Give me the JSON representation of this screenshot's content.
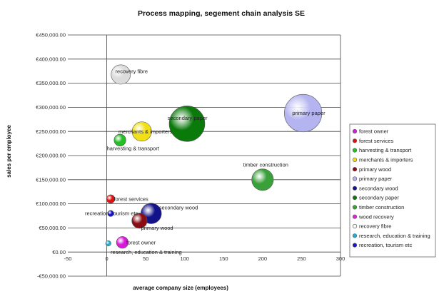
{
  "chart_data": {
    "type": "bubble",
    "title": "Process mapping, segement chain analysis SE",
    "xlabel": "average company size (employees)",
    "ylabel": "sales per employee",
    "xlim": [
      -50,
      300
    ],
    "ylim": [
      -50000,
      450000
    ],
    "x_ticks": [
      -50,
      0,
      50,
      100,
      150,
      200,
      250,
      300
    ],
    "y_ticks": [
      {
        "value": -50000,
        "label": "-€50,000.00"
      },
      {
        "value": 0,
        "label": "€0.00"
      },
      {
        "value": 50000,
        "label": "€50,000.00"
      },
      {
        "value": 100000,
        "label": "€100,000.00"
      },
      {
        "value": 150000,
        "label": "€150,000.00"
      },
      {
        "value": 200000,
        "label": "€200,000.00"
      },
      {
        "value": 250000,
        "label": "€250,000.00"
      },
      {
        "value": 300000,
        "label": "€300,000.00"
      },
      {
        "value": 350000,
        "label": "€350,000.00"
      },
      {
        "value": 400000,
        "label": "€400,000.00"
      },
      {
        "value": 450000,
        "label": "€450,000.00"
      }
    ],
    "grid": "horizontal",
    "legend_position": "right",
    "series": [
      {
        "name": "forest owner",
        "x": 20,
        "y": 20000,
        "size": 3,
        "color": "#d81bd8"
      },
      {
        "name": "forest services",
        "x": 5,
        "y": 110000,
        "size": 1.5,
        "color": "#e01010"
      },
      {
        "name": "harvesting & transport",
        "x": 17,
        "y": 232000,
        "size": 3,
        "color": "#22c022"
      },
      {
        "name": "merchants & importers",
        "x": 45,
        "y": 250000,
        "size": 8,
        "color": "#f0e014"
      },
      {
        "name": "primary wood",
        "x": 42,
        "y": 65000,
        "size": 5,
        "color": "#8a0c14"
      },
      {
        "name": "primary paper",
        "x": 252,
        "y": 288000,
        "size": 30,
        "color": "#b4b4f0"
      },
      {
        "name": "secondary wood",
        "x": 57,
        "y": 80000,
        "size": 9,
        "color": "#12128a"
      },
      {
        "name": "secondary paper",
        "x": 103,
        "y": 266000,
        "size": 27,
        "color": "#0a7a0a"
      },
      {
        "name": "timber construction",
        "x": 200,
        "y": 150000,
        "size": 10,
        "color": "#3aa03a"
      },
      {
        "name": "wood recovery",
        "x": 0,
        "y": 0,
        "size": 0,
        "color": "#e020e0"
      },
      {
        "name": "research, education & training",
        "x": 2,
        "y": 18000,
        "size": 0.6,
        "color": "#20b0d0"
      },
      {
        "name": "recovery fibre",
        "x": 18,
        "y": 368000,
        "size": 8,
        "color": "#dcdcdc"
      },
      {
        "name": "recreation, tourism etc",
        "x": 5,
        "y": 80000,
        "size": 0.8,
        "color": "#1818c8"
      }
    ],
    "data_labels": [
      {
        "text": "forest owner",
        "x": 25,
        "y": 20000
      },
      {
        "text": "forest services",
        "x": 9,
        "y": 110000
      },
      {
        "text": "harvesting & transport",
        "x": 0,
        "y": 215000
      },
      {
        "text": "merchants & importers",
        "x": 15,
        "y": 250000
      },
      {
        "text": "primary wood",
        "x": 44,
        "y": 50000
      },
      {
        "text": "primary paper",
        "x": 238,
        "y": 288000
      },
      {
        "text": "secondary wood",
        "x": 67,
        "y": 92000
      },
      {
        "text": "secondary paper",
        "x": 78,
        "y": 278000
      },
      {
        "text": "timber construction",
        "x": 175,
        "y": 181000
      },
      {
        "text": "research, education & training",
        "x": 5,
        "y": 0
      },
      {
        "text": "recovery fibre",
        "x": 11,
        "y": 375000
      },
      {
        "text": "recreation, tourism etc",
        "x": -28,
        "y": 80000
      }
    ]
  },
  "legend": {
    "items": [
      {
        "label": "forest owner",
        "color": "#d81bd8",
        "hollow": false
      },
      {
        "label": "forest services",
        "color": "#e01010",
        "hollow": false
      },
      {
        "label": "harvesting & transport",
        "color": "#22c022",
        "hollow": false
      },
      {
        "label": "merchants & importers",
        "color": "#f0e014",
        "hollow": false
      },
      {
        "label": "primary wood",
        "color": "#8a0c14",
        "hollow": false
      },
      {
        "label": "primary paper",
        "color": "#b4b4f0",
        "hollow": false
      },
      {
        "label": "secondary wood",
        "color": "#12128a",
        "hollow": false
      },
      {
        "label": "secondary paper",
        "color": "#0a7a0a",
        "hollow": false
      },
      {
        "label": "timber construction",
        "color": "#3aa03a",
        "hollow": false
      },
      {
        "label": "wood recovery",
        "color": "#e020e0",
        "hollow": false
      },
      {
        "label": "recovery fibre",
        "color": "#ffffff",
        "hollow": true
      },
      {
        "label": "research, education & training",
        "color": "#20b0d0",
        "hollow": false
      },
      {
        "label": "recreation, tourism etc",
        "color": "#1818c8",
        "hollow": false
      }
    ]
  }
}
